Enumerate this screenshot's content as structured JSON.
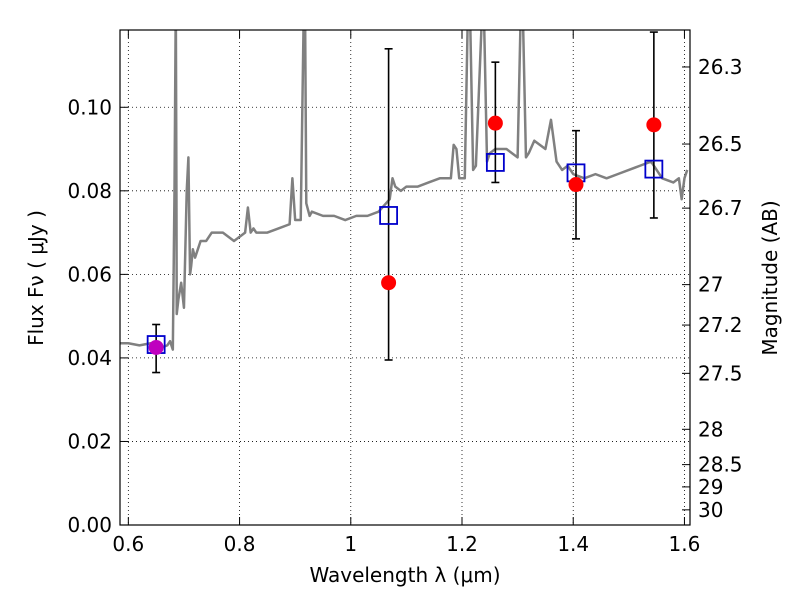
{
  "chart_data": {
    "type": "scatter",
    "title": "",
    "xlabel": "Wavelength  λ (μm)",
    "ylabel": "Flux  Fν  ( μJy )",
    "y2label": "Magnitude (AB)",
    "xlim": [
      0.585,
      1.61
    ],
    "ylim": [
      0.0,
      0.1185
    ],
    "grid": true,
    "colors": {
      "spectrum": "#808080",
      "model_points": "#0000cc",
      "observed_points": "#ff0000",
      "highlight_point": "#bf00bf",
      "errorbars": "#000000"
    },
    "x_ticks": [
      {
        "value": 0.6,
        "label": "0.6"
      },
      {
        "value": 0.8,
        "label": "0.8"
      },
      {
        "value": 1.0,
        "label": "1"
      },
      {
        "value": 1.2,
        "label": "1.2"
      },
      {
        "value": 1.4,
        "label": "1.4"
      },
      {
        "value": 1.6,
        "label": "1.6"
      }
    ],
    "y_ticks": [
      {
        "value": 0.0,
        "label": "0.00"
      },
      {
        "value": 0.02,
        "label": "0.02"
      },
      {
        "value": 0.04,
        "label": "0.04"
      },
      {
        "value": 0.06,
        "label": "0.06"
      },
      {
        "value": 0.08,
        "label": "0.08"
      },
      {
        "value": 0.1,
        "label": "0.10"
      }
    ],
    "y2_ticks": [
      {
        "value": 26.3,
        "label": "26.3"
      },
      {
        "value": 26.5,
        "label": "26.5"
      },
      {
        "value": 26.7,
        "label": "26.7"
      },
      {
        "value": 27.0,
        "label": "27"
      },
      {
        "value": 27.2,
        "label": "27.2"
      },
      {
        "value": 27.5,
        "label": "27.5"
      },
      {
        "value": 28.0,
        "label": "28"
      },
      {
        "value": 28.5,
        "label": "28.5"
      },
      {
        "value": 29.0,
        "label": "29"
      },
      {
        "value": 30.0,
        "label": "30"
      }
    ],
    "spectrum": {
      "x": [
        0.585,
        0.6,
        0.62,
        0.64,
        0.66,
        0.67,
        0.675,
        0.68,
        0.683,
        0.685,
        0.6855,
        0.6865,
        0.687,
        0.69,
        0.695,
        0.7,
        0.705,
        0.708,
        0.711,
        0.713,
        0.716,
        0.72,
        0.73,
        0.74,
        0.75,
        0.77,
        0.79,
        0.81,
        0.815,
        0.82,
        0.825,
        0.83,
        0.85,
        0.87,
        0.89,
        0.895,
        0.9,
        0.91,
        0.915,
        0.918,
        0.92,
        0.926,
        0.93,
        0.95,
        0.97,
        0.99,
        1.01,
        1.03,
        1.05,
        1.07,
        1.075,
        1.08,
        1.09,
        1.1,
        1.12,
        1.14,
        1.16,
        1.18,
        1.185,
        1.19,
        1.195,
        1.2,
        1.205,
        1.21,
        1.215,
        1.22,
        1.225,
        1.235,
        1.24,
        1.245,
        1.25,
        1.26,
        1.27,
        1.28,
        1.29,
        1.3,
        1.305,
        1.31,
        1.315,
        1.32,
        1.33,
        1.35,
        1.36,
        1.37,
        1.38,
        1.39,
        1.4,
        1.42,
        1.44,
        1.46,
        1.48,
        1.5,
        1.52,
        1.54,
        1.56,
        1.58,
        1.59,
        1.595,
        1.6,
        1.605
      ],
      "y": [
        0.0435,
        0.0435,
        0.043,
        0.0435,
        0.0425,
        0.043,
        0.044,
        0.042,
        0.08,
        0.119,
        0.119,
        0.08,
        0.0505,
        0.054,
        0.058,
        0.052,
        0.08,
        0.088,
        0.06,
        0.062,
        0.066,
        0.064,
        0.068,
        0.068,
        0.07,
        0.07,
        0.068,
        0.07,
        0.076,
        0.07,
        0.071,
        0.07,
        0.07,
        0.071,
        0.072,
        0.083,
        0.073,
        0.073,
        0.119,
        0.119,
        0.077,
        0.074,
        0.075,
        0.074,
        0.074,
        0.073,
        0.074,
        0.074,
        0.075,
        0.078,
        0.083,
        0.081,
        0.08,
        0.081,
        0.081,
        0.082,
        0.083,
        0.083,
        0.091,
        0.09,
        0.083,
        0.083,
        0.083,
        0.119,
        0.119,
        0.085,
        0.086,
        0.119,
        0.119,
        0.087,
        0.089,
        0.09,
        0.09,
        0.09,
        0.089,
        0.088,
        0.119,
        0.119,
        0.088,
        0.089,
        0.092,
        0.09,
        0.097,
        0.087,
        0.085,
        0.086,
        0.084,
        0.083,
        0.084,
        0.083,
        0.084,
        0.085,
        0.086,
        0.087,
        0.083,
        0.082,
        0.083,
        0.078,
        0.083,
        0.085
      ]
    },
    "series": [
      {
        "marker": "open-square",
        "x": [
          0.65,
          1.068,
          1.26,
          1.405,
          1.545
        ],
        "y": [
          0.0432,
          0.0741,
          0.0868,
          0.0843,
          0.0852
        ]
      },
      {
        "marker": "filled-circle",
        "x": [
          0.65,
          1.068,
          1.26,
          1.405,
          1.545
        ],
        "y": [
          0.0425,
          0.058,
          0.0962,
          0.0815,
          0.0958
        ],
        "yerr_low": [
          0.0365,
          0.0395,
          0.082,
          0.0685,
          0.0735
        ],
        "yerr_high": [
          0.048,
          0.114,
          0.1108,
          0.0944,
          0.118
        ]
      }
    ]
  }
}
